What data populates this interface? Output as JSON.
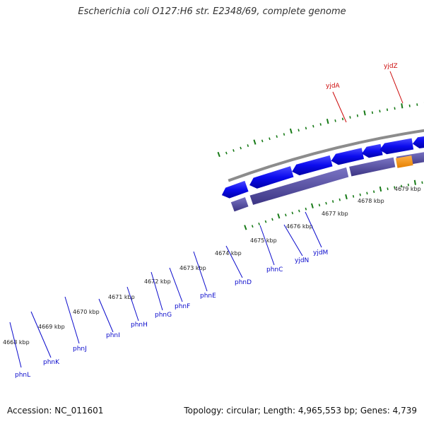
{
  "title": "Escherichia coli O127:H6 str. E2348/69, complete genome",
  "footer": {
    "accession": "Accession: NC_011601",
    "summary": "Topology: circular; Length: 4,965,553 bp; Genes: 4,739"
  },
  "kbp_labels": [
    "4668 kbp",
    "4669 kbp",
    "4670 kbp",
    "4671 kbp",
    "4672 kbp",
    "4673 kbp",
    "4674 kbp",
    "4675 kbp",
    "4676 kbp",
    "4677 kbp",
    "4678 kbp",
    "4679 kbp"
  ],
  "genes": [
    {
      "name": "phnL",
      "color": "#0a0acc"
    },
    {
      "name": "phnK",
      "color": "#0a0acc"
    },
    {
      "name": "phnJ",
      "color": "#0a0acc"
    },
    {
      "name": "phnI",
      "color": "#0a0acc"
    },
    {
      "name": "phnH",
      "color": "#0a0acc"
    },
    {
      "name": "phnG",
      "color": "#0a0acc"
    },
    {
      "name": "phnF",
      "color": "#0a0acc"
    },
    {
      "name": "phnE",
      "color": "#0a0acc"
    },
    {
      "name": "phnD",
      "color": "#0a0acc"
    },
    {
      "name": "phnC",
      "color": "#0a0acc"
    },
    {
      "name": "yjdN",
      "color": "#0a0acc"
    },
    {
      "name": "yjdM",
      "color": "#0a0acc"
    },
    {
      "name": "yjdA",
      "color": "#cc0a0a"
    },
    {
      "name": "yjdZ",
      "color": "#cc0a0a"
    }
  ],
  "colors": {
    "forward_gene": "#ee1111",
    "reverse_gene": "#0b0bee",
    "reverse_shadow": "#4a449a",
    "highlight_gene": "#f29318",
    "pseudo_gene": "#6d6d6d",
    "backbone": "#8c8c8c",
    "tick": "#177a17"
  }
}
